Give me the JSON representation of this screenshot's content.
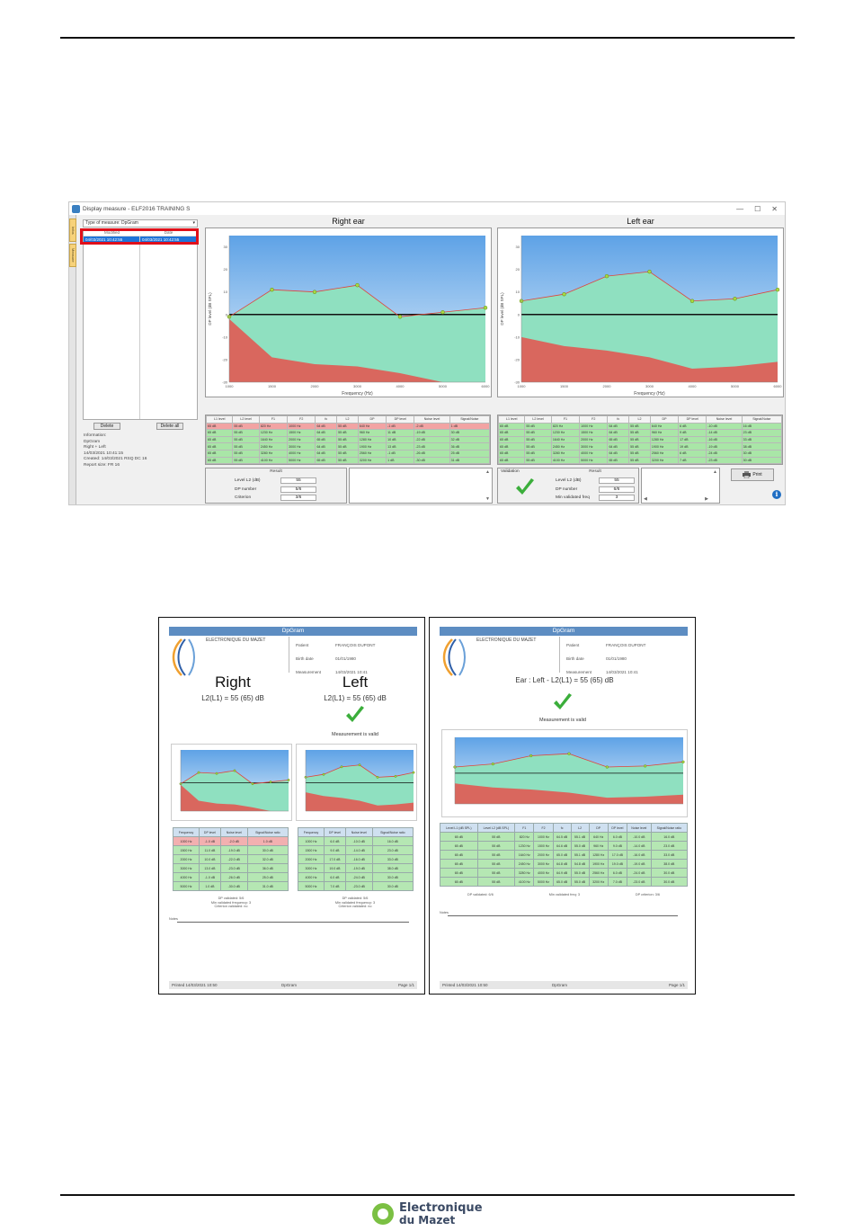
{
  "window": {
    "title": "Display measure - ELF2016 TRAINING S",
    "controls": [
      "—",
      "☐",
      "✕"
    ]
  },
  "side_tabs": [
    "Infos",
    "Measure"
  ],
  "left_panel": {
    "type_select": "Type of measure: DpGram",
    "list_headers": [
      "Modified",
      "Date"
    ],
    "selected_row": [
      "04/03/2021 10:42:55",
      "04/03/2021 10:42:55"
    ],
    "delete_label": "Delete",
    "delete_all_label": "Delete all",
    "info_lines": [
      "Information:",
      "DpGram",
      "Right + Left",
      "14/03/2021 10:41:15",
      "Created: 14/03/2021  RSQ  DC 16",
      "Report size: FR 16"
    ]
  },
  "right_chart": {
    "header": "Right ear",
    "xlabel": "Frequency (Hz)",
    "ylabel": "DP level (dB SPL)"
  },
  "left_chart": {
    "header": "Left ear",
    "xlabel": "Frequency (Hz)",
    "ylabel": "DP level (dB SPL)"
  },
  "chart_data": [
    {
      "type": "area",
      "title": "Right ear",
      "x": [
        1000,
        1500,
        2000,
        3000,
        4000,
        5000,
        6000
      ],
      "series": [
        {
          "values": [
            -1,
            11,
            10,
            13,
            -1,
            1,
            3
          ]
        },
        {
          "values": [
            -2,
            -19,
            -22,
            -23,
            -26,
            -30,
            -30
          ]
        }
      ],
      "ylim": [
        -30,
        35
      ]
    },
    {
      "type": "area",
      "title": "Left ear",
      "x": [
        1000,
        1500,
        2000,
        3000,
        4000,
        5000,
        6000
      ],
      "series": [
        {
          "values": [
            6,
            9,
            17,
            19,
            6,
            7,
            11
          ]
        },
        {
          "values": [
            -10,
            -14,
            -16,
            -19,
            -24,
            -23,
            -21
          ]
        }
      ],
      "ylim": [
        -30,
        35
      ]
    }
  ],
  "right_table": {
    "headers": [
      "L1 level",
      "L2 level",
      "F1",
      "F2",
      "fc",
      "L2",
      "DP",
      "DP level",
      "Noise level",
      "Signal/Noise"
    ],
    "rows": [
      [
        "65 dB",
        "55 dB",
        "820 Hz",
        "1000 Hz",
        "64 dB",
        "55 dB",
        "640 Hz",
        "-1 dB",
        "-2 dB",
        "1 dB"
      ],
      [
        "65 dB",
        "55 dB",
        "1230 Hz",
        "1500 Hz",
        "64 dB",
        "55 dB",
        "960 Hz",
        "11 dB",
        "-19 dB",
        "30 dB"
      ],
      [
        "65 dB",
        "55 dB",
        "1640 Hz",
        "2000 Hz",
        "65 dB",
        "55 dB",
        "1280 Hz",
        "10 dB",
        "-22 dB",
        "32 dB"
      ],
      [
        "65 dB",
        "55 dB",
        "2450 Hz",
        "3000 Hz",
        "64 dB",
        "55 dB",
        "1900 Hz",
        "13 dB",
        "-23 dB",
        "36 dB"
      ],
      [
        "65 dB",
        "55 dB",
        "3280 Hz",
        "4000 Hz",
        "64 dB",
        "55 dB",
        "2560 Hz",
        "-1 dB",
        "-26 dB",
        "25 dB"
      ],
      [
        "65 dB",
        "55 dB",
        "4100 Hz",
        "5000 Hz",
        "65 dB",
        "55 dB",
        "3200 Hz",
        "1 dB",
        "-30 dB",
        "31 dB"
      ]
    ]
  },
  "left_table": {
    "headers": [
      "L1 level",
      "L2 level",
      "F1",
      "F2",
      "fc",
      "L2",
      "DP",
      "DP level",
      "Noise level",
      "Signal/Noise"
    ],
    "rows": [
      [
        "65 dB",
        "55 dB",
        "820 Hz",
        "1000 Hz",
        "64 dB",
        "55 dB",
        "640 Hz",
        "6 dB",
        "-10 dB",
        "16 dB"
      ],
      [
        "65 dB",
        "55 dB",
        "1230 Hz",
        "1500 Hz",
        "64 dB",
        "55 dB",
        "960 Hz",
        "9 dB",
        "-14 dB",
        "23 dB"
      ],
      [
        "65 dB",
        "55 dB",
        "1640 Hz",
        "2000 Hz",
        "65 dB",
        "55 dB",
        "1280 Hz",
        "17 dB",
        "-16 dB",
        "33 dB"
      ],
      [
        "65 dB",
        "55 dB",
        "2450 Hz",
        "3000 Hz",
        "64 dB",
        "55 dB",
        "1900 Hz",
        "19 dB",
        "-19 dB",
        "38 dB"
      ],
      [
        "65 dB",
        "55 dB",
        "3280 Hz",
        "4000 Hz",
        "64 dB",
        "55 dB",
        "2560 Hz",
        "6 dB",
        "-24 dB",
        "30 dB"
      ],
      [
        "65 dB",
        "55 dB",
        "4100 Hz",
        "5000 Hz",
        "65 dB",
        "55 dB",
        "3200 Hz",
        "7 dB",
        "-23 dB",
        "30 dB"
      ]
    ]
  },
  "right_result": {
    "caption": "Result",
    "rows": [
      {
        "label": "Level L2 (dB)",
        "value": "55"
      },
      {
        "label": "DP number",
        "value": "5/6"
      },
      {
        "label": "Criterion",
        "value": "3/6"
      }
    ]
  },
  "left_result": {
    "caption": "Result",
    "validation": "Validation",
    "rows": [
      {
        "label": "Level L2 (dB)",
        "value": "55"
      },
      {
        "label": "DP number",
        "value": "6/6"
      },
      {
        "label": "Min validated freq",
        "value": "3"
      }
    ]
  },
  "print_label": "Print",
  "info_icon": "i",
  "report_both": {
    "header": "DpGram",
    "lab": "ELECTRONIQUE DU MAZET",
    "fields": [
      {
        "label": "Patient",
        "value": "FRANÇOIS DUPONT"
      },
      {
        "label": "Birth date",
        "value": "01/01/1980"
      },
      {
        "label": "Measurement",
        "value": "14/03/2021 10:41"
      }
    ],
    "right_title": "Right",
    "right_sub": "L2(L1) = 55 (65) dB",
    "left_title": "Left",
    "left_sub": "L2(L1) = 55 (65) dB",
    "valid_text": "Measurement is valid",
    "table_headers": [
      "Frequency",
      "DP level",
      "Noise level",
      "Signal/Noise ratio"
    ],
    "right_rows": [
      [
        "1000 Hz",
        "-1.0 dB",
        "-2.0 dB",
        "1.0 dB"
      ],
      [
        "1500 Hz",
        "11.0 dB",
        "-19.0 dB",
        "30.0 dB"
      ],
      [
        "2000 Hz",
        "10.0 dB",
        "-22.0 dB",
        "32.0 dB"
      ],
      [
        "3000 Hz",
        "13.0 dB",
        "-23.0 dB",
        "36.0 dB"
      ],
      [
        "4000 Hz",
        "-1.0 dB",
        "-26.0 dB",
        "25.0 dB"
      ],
      [
        "5000 Hz",
        "1.0 dB",
        "-30.0 dB",
        "31.0 dB"
      ]
    ],
    "left_rows": [
      [
        "1000 Hz",
        "6.0 dB",
        "-10.0 dB",
        "16.0 dB"
      ],
      [
        "1500 Hz",
        "9.0 dB",
        "-14.0 dB",
        "23.0 dB"
      ],
      [
        "2000 Hz",
        "17.0 dB",
        "-16.0 dB",
        "33.0 dB"
      ],
      [
        "3000 Hz",
        "19.0 dB",
        "-19.0 dB",
        "38.0 dB"
      ],
      [
        "4000 Hz",
        "6.0 dB",
        "-24.0 dB",
        "30.0 dB"
      ],
      [
        "5000 Hz",
        "7.0 dB",
        "-23.0 dB",
        "30.0 dB"
      ]
    ],
    "table_note": [
      "DP validated: 5/6",
      "Min validated frequency: 3",
      "Criterion validated: no"
    ],
    "note_label": "Notes",
    "footer_left": "Printed 14/03/2021 10:50",
    "footer_center": "DpGram",
    "footer_right": "Page 1/1"
  },
  "report_left": {
    "header": "DpGram",
    "lab": "ELECTRONIQUE DU MAZET",
    "fields": [
      {
        "label": "Patient",
        "value": "FRANÇOIS DUPONT"
      },
      {
        "label": "Birth date",
        "value": "01/01/1980"
      },
      {
        "label": "Measurement",
        "value": "14/03/2021 10:41"
      }
    ],
    "title": "Ear : Left - L2(L1) = 55 (65) dB",
    "valid_text": "Measurement is valid",
    "table_headers": [
      "Level L1 (dB SPL)",
      "Level L2 (dB SPL)",
      "F1",
      "F2",
      "fc",
      "L2",
      "DP",
      "DP level",
      "Noise level",
      "Signal/Noise ratio"
    ],
    "rows": [
      [
        "65 dB",
        "55 dB",
        "820 Hz",
        "1000 Hz",
        "64.5 dB",
        "55.1 dB",
        "640 Hz",
        "6.0 dB",
        "-10.0 dB",
        "16.0 dB"
      ],
      [
        "65 dB",
        "55 dB",
        "1230 Hz",
        "1500 Hz",
        "64.6 dB",
        "55.0 dB",
        "960 Hz",
        "9.0 dB",
        "-14.0 dB",
        "23.0 dB"
      ],
      [
        "65 dB",
        "55 dB",
        "1640 Hz",
        "2000 Hz",
        "65.0 dB",
        "55.1 dB",
        "1280 Hz",
        "17.0 dB",
        "-16.0 dB",
        "33.0 dB"
      ],
      [
        "65 dB",
        "55 dB",
        "2450 Hz",
        "3000 Hz",
        "64.8 dB",
        "54.8 dB",
        "1900 Hz",
        "19.0 dB",
        "-19.0 dB",
        "38.0 dB"
      ],
      [
        "65 dB",
        "55 dB",
        "3280 Hz",
        "4000 Hz",
        "64.9 dB",
        "55.0 dB",
        "2560 Hz",
        "6.0 dB",
        "-24.0 dB",
        "30.0 dB"
      ],
      [
        "65 dB",
        "55 dB",
        "4100 Hz",
        "5000 Hz",
        "65.0 dB",
        "55.0 dB",
        "3200 Hz",
        "7.0 dB",
        "-23.0 dB",
        "30.0 dB"
      ]
    ],
    "summary": [
      "DP validated: 6/6",
      "Min validated freq: 3",
      "DP criterion: 3/6"
    ],
    "note_label": "Notes",
    "footer_left": "Printed 14/03/2021 10:50",
    "footer_center": "DpGram",
    "footer_right": "Page 1/1"
  },
  "brand": {
    "line1": "Electronique",
    "line2": "du Mazet"
  }
}
